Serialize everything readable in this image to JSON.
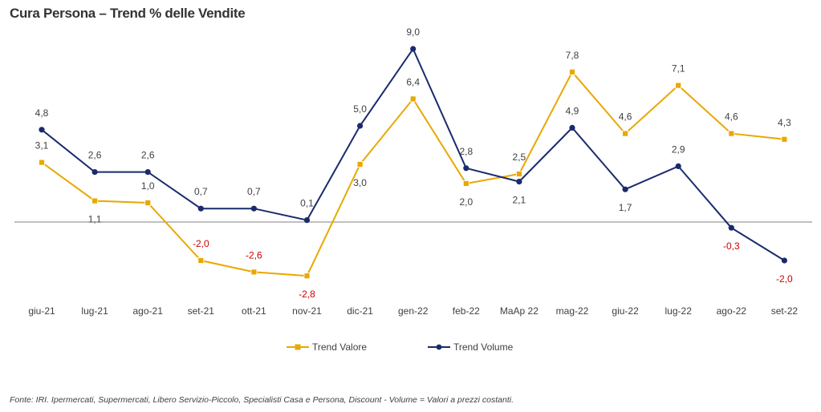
{
  "title": "Cura Persona – Trend % delle Vendite",
  "source_note": "Fonte: IRI. Ipermercati, Supermercati, Libero Servizio-Piccolo,  Specialisti Casa e Persona, Discount -  Volume =  Valori a prezzi costanti.",
  "chart_data": {
    "type": "line",
    "categories": [
      "giu-21",
      "lug-21",
      "ago-21",
      "set-21",
      "ott-21",
      "nov-21",
      "dic-21",
      "gen-22",
      "feb-22",
      "MaAp 22",
      "mag-22",
      "giu-22",
      "lug-22",
      "ago-22",
      "set-22"
    ],
    "series": [
      {
        "name": "Trend Valore",
        "color": "#e8a800",
        "marker": "square",
        "values": [
          3.1,
          1.1,
          1.0,
          -2.0,
          -2.6,
          -2.8,
          3.0,
          6.4,
          2.0,
          2.5,
          7.8,
          4.6,
          7.1,
          4.6,
          4.3
        ],
        "labels": [
          "3,1",
          "1,1",
          "1,0",
          "-2,0",
          "-2,6",
          "-2,8",
          "3,0",
          "6,4",
          "2,0",
          "2,5",
          "7,8",
          "4,6",
          "7,1",
          "4,6",
          "4,3"
        ],
        "label_pos": [
          "above",
          "below",
          "above",
          "above",
          "above",
          "below",
          "below",
          "above",
          "below",
          "above",
          "above",
          "above",
          "above",
          "above",
          "above"
        ]
      },
      {
        "name": "Trend Volume",
        "color": "#1a2a6c",
        "marker": "circle",
        "values": [
          4.8,
          2.6,
          2.6,
          0.7,
          0.7,
          0.1,
          5.0,
          9.0,
          2.8,
          2.1,
          4.9,
          1.7,
          2.9,
          -0.3,
          -2.0
        ],
        "labels": [
          "4,8",
          "2,6",
          "2,6",
          "0,7",
          "0,7",
          "0,1",
          "5,0",
          "9,0",
          "2,8",
          "2,1",
          "4,9",
          "1,7",
          "2,9",
          "-0,3",
          "-2,0"
        ],
        "label_pos": [
          "above",
          "above",
          "above",
          "above",
          "above",
          "above",
          "above",
          "above",
          "above",
          "below",
          "above",
          "below",
          "above",
          "below",
          "below"
        ]
      }
    ],
    "zero_line_color": "#808080",
    "legend_position": "bottom",
    "grid": false
  }
}
